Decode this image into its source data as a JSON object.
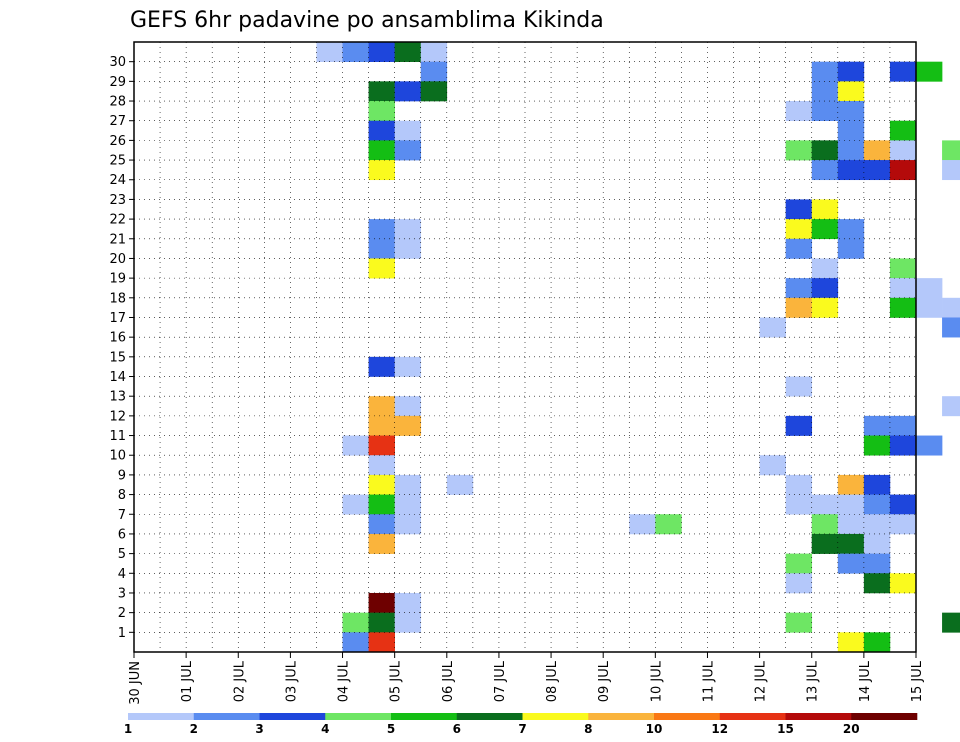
{
  "chart_data": {
    "type": "heatmap",
    "title": "GEFS 6hr padavine po ansamblima Kikinda",
    "xlabel": "",
    "ylabel": "",
    "x_ticks": [
      "30 JUN",
      "01 JUL",
      "02 JUL",
      "03 JUL",
      "04 JUL",
      "05 JUL",
      "06 JUL",
      "07 JUL",
      "08 JUL",
      "09 JUL",
      "10 JUL",
      "11 JUL",
      "12 JUL",
      "13 JUL",
      "14 JUL",
      "15 JUL"
    ],
    "y_ticks": [
      "1",
      "2",
      "3",
      "4",
      "5",
      "6",
      "7",
      "8",
      "9",
      "10",
      "11",
      "12",
      "13",
      "14",
      "15",
      "16",
      "17",
      "18",
      "19",
      "20",
      "21",
      "22",
      "23",
      "24",
      "25",
      "26",
      "27",
      "28",
      "29",
      "30"
    ],
    "time_steps_per_day": 4,
    "members": 30,
    "grid": true,
    "legend_position": "bottom",
    "colorbar": {
      "labels": [
        "1",
        "2",
        "3",
        "4",
        "5",
        "6",
        "7",
        "8",
        "10",
        "12",
        "15",
        "20"
      ],
      "colors": [
        "#b4c8fa",
        "#5a8cf0",
        "#1e46dc",
        "#6ee664",
        "#14be14",
        "#0a6e1e",
        "#fafa1e",
        "#fab43c",
        "#fa7814",
        "#e63214",
        "#b40a0a",
        "#6e0000"
      ]
    },
    "cells": [
      [
        30,
        14,
        0
      ],
      [
        30,
        16,
        1
      ],
      [
        30,
        18,
        2
      ],
      [
        30,
        20,
        5
      ],
      [
        30,
        22,
        0
      ],
      [
        30,
        70,
        5
      ],
      [
        30,
        110,
        5
      ],
      [
        30,
        112,
        4
      ],
      [
        30,
        138,
        0
      ],
      [
        30,
        140,
        5
      ],
      [
        29,
        22,
        1
      ],
      [
        29,
        52,
        1
      ],
      [
        29,
        54,
        2
      ],
      [
        29,
        58,
        2
      ],
      [
        29,
        60,
        4
      ],
      [
        29,
        64,
        0
      ],
      [
        29,
        72,
        0
      ],
      [
        29,
        74,
        2
      ],
      [
        28,
        18,
        5
      ],
      [
        28,
        20,
        2
      ],
      [
        28,
        22,
        5
      ],
      [
        28,
        52,
        1
      ],
      [
        28,
        54,
        6
      ],
      [
        28,
        130,
        3
      ],
      [
        27,
        18,
        3
      ],
      [
        27,
        50,
        0
      ],
      [
        27,
        52,
        1
      ],
      [
        27,
        54,
        1
      ],
      [
        27,
        150,
        4
      ],
      [
        26,
        18,
        2
      ],
      [
        26,
        20,
        0
      ],
      [
        26,
        54,
        1
      ],
      [
        26,
        58,
        4
      ],
      [
        26,
        66,
        7
      ],
      [
        26,
        68,
        2
      ],
      [
        26,
        144,
        4
      ],
      [
        25,
        18,
        4
      ],
      [
        25,
        20,
        1
      ],
      [
        25,
        50,
        3
      ],
      [
        25,
        52,
        5
      ],
      [
        25,
        54,
        1
      ],
      [
        25,
        56,
        7
      ],
      [
        25,
        58,
        0
      ],
      [
        25,
        62,
        3
      ],
      [
        25,
        64,
        6
      ],
      [
        25,
        80,
        2
      ],
      [
        25,
        84,
        0
      ],
      [
        25,
        86,
        0
      ],
      [
        25,
        92,
        1
      ],
      [
        24,
        18,
        6
      ],
      [
        24,
        52,
        1
      ],
      [
        24,
        54,
        2
      ],
      [
        24,
        56,
        2
      ],
      [
        24,
        58,
        10
      ],
      [
        24,
        62,
        0
      ],
      [
        24,
        68,
        1
      ],
      [
        24,
        82,
        3
      ],
      [
        24,
        88,
        1
      ],
      [
        24,
        150,
        4
      ],
      [
        23,
        66,
        2
      ],
      [
        23,
        68,
        8
      ],
      [
        23,
        150,
        2
      ],
      [
        22,
        50,
        2
      ],
      [
        22,
        52,
        6
      ],
      [
        22,
        110,
        0
      ],
      [
        22,
        112,
        1
      ],
      [
        22,
        126,
        0
      ],
      [
        22,
        136,
        0
      ],
      [
        22,
        138,
        0
      ],
      [
        21,
        18,
        1
      ],
      [
        21,
        20,
        0
      ],
      [
        21,
        50,
        6
      ],
      [
        21,
        52,
        4
      ],
      [
        21,
        54,
        1
      ],
      [
        21,
        90,
        1
      ],
      [
        21,
        92,
        0
      ],
      [
        21,
        94,
        4
      ],
      [
        20,
        18,
        1
      ],
      [
        20,
        20,
        0
      ],
      [
        20,
        50,
        1
      ],
      [
        20,
        54,
        1
      ],
      [
        20,
        74,
        0
      ],
      [
        20,
        112,
        0
      ],
      [
        20,
        140,
        0
      ],
      [
        19,
        18,
        6
      ],
      [
        19,
        52,
        0
      ],
      [
        19,
        58,
        3
      ],
      [
        19,
        82,
        1
      ],
      [
        19,
        84,
        6
      ],
      [
        19,
        86,
        5
      ],
      [
        19,
        92,
        1
      ],
      [
        19,
        110,
        0
      ],
      [
        18,
        50,
        1
      ],
      [
        18,
        52,
        2
      ],
      [
        18,
        58,
        0
      ],
      [
        18,
        60,
        0
      ],
      [
        18,
        120,
        1
      ],
      [
        17,
        50,
        7
      ],
      [
        17,
        52,
        6
      ],
      [
        17,
        58,
        4
      ],
      [
        17,
        60,
        0
      ],
      [
        17,
        62,
        0
      ],
      [
        17,
        116,
        4
      ],
      [
        17,
        118,
        2
      ],
      [
        16,
        48,
        0
      ],
      [
        16,
        62,
        1
      ],
      [
        16,
        76,
        5
      ],
      [
        16,
        78,
        10
      ],
      [
        16,
        80,
        1
      ],
      [
        16,
        82,
        1
      ],
      [
        16,
        84,
        0
      ],
      [
        16,
        88,
        2
      ],
      [
        16,
        90,
        1
      ],
      [
        16,
        104,
        2
      ],
      [
        16,
        106,
        0
      ],
      [
        16,
        108,
        0
      ],
      [
        16,
        110,
        0
      ],
      [
        16,
        112,
        0
      ],
      [
        16,
        120,
        1
      ],
      [
        16,
        122,
        0
      ],
      [
        16,
        150,
        2
      ],
      [
        14,
        18,
        2
      ],
      [
        14,
        20,
        0
      ],
      [
        13,
        50,
        0
      ],
      [
        13,
        80,
        0
      ],
      [
        13,
        82,
        3
      ],
      [
        12,
        18,
        7
      ],
      [
        12,
        20,
        0
      ],
      [
        12,
        62,
        0
      ],
      [
        12,
        70,
        11
      ],
      [
        12,
        74,
        0
      ],
      [
        12,
        82,
        7
      ],
      [
        12,
        84,
        1
      ],
      [
        12,
        94,
        0
      ],
      [
        11,
        18,
        7
      ],
      [
        11,
        20,
        7
      ],
      [
        11,
        50,
        2
      ],
      [
        11,
        56,
        1
      ],
      [
        11,
        58,
        1
      ],
      [
        11,
        104,
        1
      ],
      [
        11,
        112,
        0
      ],
      [
        11,
        114,
        0
      ],
      [
        11,
        116,
        0
      ],
      [
        11,
        122,
        2
      ],
      [
        11,
        124,
        0
      ],
      [
        11,
        126,
        2
      ],
      [
        10,
        16,
        0
      ],
      [
        10,
        18,
        9
      ],
      [
        10,
        56,
        4
      ],
      [
        10,
        58,
        2
      ],
      [
        10,
        60,
        1
      ],
      [
        9,
        18,
        0
      ],
      [
        9,
        48,
        0
      ],
      [
        9,
        70,
        3
      ],
      [
        9,
        92,
        0
      ],
      [
        9,
        94,
        1
      ],
      [
        9,
        104,
        2
      ],
      [
        9,
        106,
        1
      ],
      [
        9,
        108,
        0
      ],
      [
        8,
        18,
        6
      ],
      [
        8,
        20,
        0
      ],
      [
        8,
        24,
        0
      ],
      [
        8,
        50,
        0
      ],
      [
        8,
        54,
        7
      ],
      [
        8,
        56,
        2
      ],
      [
        8,
        126,
        0
      ],
      [
        8,
        132,
        0
      ],
      [
        7,
        16,
        0
      ],
      [
        7,
        18,
        4
      ],
      [
        7,
        20,
        0
      ],
      [
        7,
        50,
        0
      ],
      [
        7,
        52,
        0
      ],
      [
        7,
        54,
        0
      ],
      [
        7,
        56,
        1
      ],
      [
        7,
        58,
        2
      ],
      [
        7,
        82,
        0
      ],
      [
        7,
        84,
        1
      ],
      [
        7,
        86,
        4
      ],
      [
        7,
        88,
        2
      ],
      [
        7,
        90,
        0
      ],
      [
        7,
        94,
        0
      ],
      [
        7,
        104,
        2
      ],
      [
        7,
        112,
        0
      ],
      [
        7,
        114,
        3
      ],
      [
        7,
        124,
        2
      ],
      [
        7,
        126,
        1
      ],
      [
        7,
        134,
        2
      ],
      [
        7,
        136,
        1
      ],
      [
        6,
        18,
        1
      ],
      [
        6,
        20,
        0
      ],
      [
        6,
        38,
        0
      ],
      [
        6,
        40,
        3
      ],
      [
        6,
        52,
        3
      ],
      [
        6,
        54,
        0
      ],
      [
        6,
        56,
        0
      ],
      [
        6,
        58,
        0
      ],
      [
        6,
        130,
        10
      ],
      [
        6,
        132,
        7
      ],
      [
        6,
        134,
        1
      ],
      [
        6,
        136,
        1
      ],
      [
        6,
        138,
        10
      ],
      [
        6,
        140,
        0
      ],
      [
        5,
        18,
        7
      ],
      [
        5,
        52,
        5
      ],
      [
        5,
        54,
        5
      ],
      [
        5,
        56,
        0
      ],
      [
        5,
        66,
        0
      ],
      [
        4,
        50,
        3
      ],
      [
        4,
        54,
        1
      ],
      [
        4,
        56,
        1
      ],
      [
        4,
        68,
        2
      ],
      [
        4,
        70,
        0
      ],
      [
        4,
        74,
        0
      ],
      [
        4,
        76,
        2
      ],
      [
        4,
        78,
        0
      ],
      [
        4,
        80,
        2
      ],
      [
        3,
        50,
        0
      ],
      [
        3,
        56,
        5
      ],
      [
        3,
        58,
        6
      ],
      [
        3,
        66,
        3
      ],
      [
        3,
        120,
        1
      ],
      [
        3,
        124,
        1
      ],
      [
        3,
        138,
        2
      ],
      [
        3,
        140,
        0
      ],
      [
        3,
        150,
        5
      ],
      [
        2,
        18,
        11
      ],
      [
        2,
        20,
        0
      ],
      [
        2,
        66,
        0
      ],
      [
        2,
        68,
        1
      ],
      [
        1,
        16,
        3
      ],
      [
        1,
        18,
        5
      ],
      [
        1,
        20,
        0
      ],
      [
        1,
        50,
        3
      ],
      [
        1,
        62,
        5
      ],
      [
        1,
        70,
        5
      ],
      [
        1,
        72,
        0
      ],
      [
        1,
        74,
        0
      ],
      [
        1,
        76,
        1
      ],
      [
        1,
        98,
        0
      ],
      [
        1,
        100,
        0
      ],
      [
        1,
        150,
        1
      ],
      [
        0,
        16,
        1
      ],
      [
        0,
        18,
        9
      ],
      [
        0,
        54,
        6
      ],
      [
        0,
        56,
        4
      ]
    ]
  }
}
